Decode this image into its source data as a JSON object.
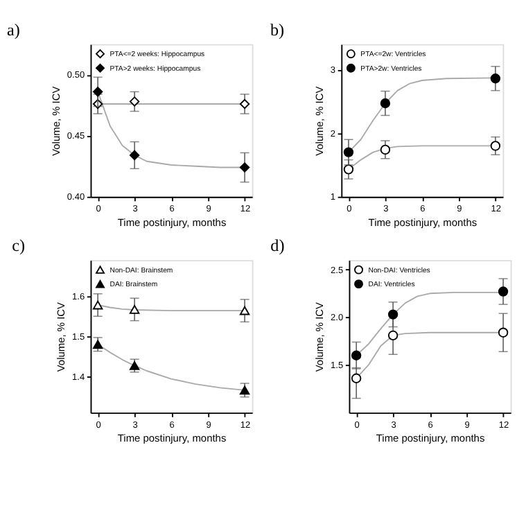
{
  "chart_data": [
    {
      "type": "scatter",
      "title": "a)",
      "xlabel": "Time postinjury, months",
      "ylabel": "Volume, % ICV",
      "marker": "diamond",
      "legend": "top left",
      "grid": false,
      "xlim": [
        -0.6,
        12.6
      ],
      "xticks": [
        0,
        3,
        6,
        9,
        12
      ],
      "ylim": [
        0.4,
        0.525
      ],
      "yticks": [
        {
          "value": 0.4,
          "label": "0.40"
        },
        {
          "value": 0.45,
          "label": "0.45"
        },
        {
          "value": 0.5,
          "label": "0.50"
        }
      ],
      "x": [
        0,
        3,
        12
      ],
      "series": [
        {
          "type": "line",
          "marker": "none",
          "color": "#aaaaaa",
          "x": [
            0,
            12
          ],
          "values": [
            0.476,
            0.476
          ]
        },
        {
          "type": "line",
          "marker": "none",
          "color": "#aaaaaa",
          "x": [
            0,
            1,
            2,
            3,
            4,
            6,
            8,
            10,
            12
          ],
          "values": [
            0.486,
            0.458,
            0.442,
            0.434,
            0.429,
            0.426,
            0.425,
            0.424,
            0.424
          ]
        },
        {
          "name": "PTA<=2 weeks: Hippocampus",
          "color": "#ffffff",
          "values": [
            0.476,
            0.478,
            0.476
          ],
          "errors": [
            0.008,
            0.008,
            0.008
          ]
        },
        {
          "name": "PTA>2 weeks: Hippocampus",
          "color": "#000000",
          "values": [
            0.486,
            0.434,
            0.424
          ],
          "errors": [
            0.012,
            0.011,
            0.012
          ]
        }
      ]
    },
    {
      "type": "scatter",
      "title": "b)",
      "xlabel": "Time postinjury, months",
      "ylabel": "Volume, % ICV",
      "marker": "circle",
      "legend": "top left",
      "grid": false,
      "xlim": [
        -0.6,
        12.6
      ],
      "xticks": [
        0,
        3,
        6,
        9,
        12
      ],
      "ylim": [
        1,
        3.4
      ],
      "yticks": [
        1,
        2,
        3
      ],
      "x": [
        0,
        3,
        12
      ],
      "series": [
        {
          "type": "line",
          "marker": "none",
          "color": "#aaaaaa",
          "x": [
            0,
            1,
            2,
            3,
            4,
            6,
            12
          ],
          "values": [
            1.43,
            1.58,
            1.7,
            1.76,
            1.79,
            1.8,
            1.8
          ]
        },
        {
          "type": "line",
          "marker": "none",
          "color": "#aaaaaa",
          "x": [
            0,
            1,
            2,
            3,
            4,
            5,
            6,
            8,
            12
          ],
          "values": [
            1.7,
            1.9,
            2.2,
            2.47,
            2.67,
            2.78,
            2.83,
            2.86,
            2.87
          ]
        },
        {
          "name": "PTA<=2w: Ventricles",
          "color": "#ffffff",
          "values": [
            1.43,
            1.74,
            1.8
          ],
          "errors": [
            0.15,
            0.14,
            0.14
          ]
        },
        {
          "name": "PTA>2w: Ventricles",
          "color": "#000000",
          "values": [
            1.7,
            2.47,
            2.86
          ],
          "errors": [
            0.2,
            0.19,
            0.19
          ]
        }
      ]
    },
    {
      "type": "scatter",
      "title": "c)",
      "xlabel": "Time postinjury, months",
      "ylabel": "Volume, % ICV",
      "marker": "triangle",
      "legend": "top left",
      "grid": false,
      "xlim": [
        -0.6,
        12.6
      ],
      "xticks": [
        0,
        3,
        6,
        9,
        12
      ],
      "ylim": [
        1.31,
        1.69
      ],
      "yticks": [
        1.4,
        1.5,
        1.6
      ],
      "x": [
        0,
        3,
        12
      ],
      "series": [
        {
          "type": "line",
          "marker": "none",
          "color": "#aaaaaa",
          "x": [
            0,
            1,
            2,
            3,
            6,
            12
          ],
          "values": [
            1.578,
            1.572,
            1.568,
            1.566,
            1.564,
            1.564
          ]
        },
        {
          "type": "line",
          "marker": "none",
          "color": "#aaaaaa",
          "x": [
            0,
            1,
            2,
            3,
            4,
            6,
            8,
            10,
            12
          ],
          "values": [
            1.48,
            1.46,
            1.442,
            1.427,
            1.414,
            1.394,
            1.381,
            1.372,
            1.366
          ]
        },
        {
          "name": "Non-DAI: Brainstem",
          "color": "#ffffff",
          "values": [
            1.578,
            1.567,
            1.564
          ],
          "errors": [
            0.028,
            0.028,
            0.028
          ]
        },
        {
          "name": "DAI: Brainstem",
          "color": "#000000",
          "values": [
            1.48,
            1.427,
            1.366
          ],
          "errors": [
            0.017,
            0.016,
            0.017
          ]
        }
      ]
    },
    {
      "type": "scatter",
      "title": "d)",
      "xlabel": "Time postinjury, months",
      "ylabel": "Volume, % ICV",
      "marker": "circle",
      "legend": "top left",
      "grid": false,
      "xlim": [
        -0.6,
        12.6
      ],
      "xticks": [
        0,
        3,
        6,
        9,
        12
      ],
      "ylim": [
        1.0,
        2.6
      ],
      "yticks": [
        1.5,
        {
          "value": 2,
          "label": "2.0"
        },
        2.5
      ],
      "x": [
        0,
        3,
        12
      ],
      "series": [
        {
          "type": "line",
          "marker": "none",
          "color": "#aaaaaa",
          "x": [
            0,
            1,
            2,
            3,
            4,
            6,
            12
          ],
          "values": [
            1.36,
            1.5,
            1.7,
            1.81,
            1.83,
            1.84,
            1.84
          ]
        },
        {
          "type": "line",
          "marker": "none",
          "color": "#aaaaaa",
          "x": [
            0,
            1,
            2,
            3,
            4,
            5,
            6,
            8,
            12
          ],
          "values": [
            1.6,
            1.72,
            1.88,
            2.03,
            2.15,
            2.22,
            2.25,
            2.26,
            2.26
          ]
        },
        {
          "name": "Non-DAI: Ventricles",
          "color": "#ffffff",
          "values": [
            1.36,
            1.81,
            1.84
          ],
          "errors": [
            [
              1.15,
              1.47
            ],
            0.2,
            0.2
          ]
        },
        {
          "name": "DAI: Ventricles",
          "color": "#000000",
          "values": [
            1.6,
            2.03,
            2.27
          ],
          "errors": [
            0.14,
            0.13,
            0.135
          ]
        }
      ]
    }
  ]
}
